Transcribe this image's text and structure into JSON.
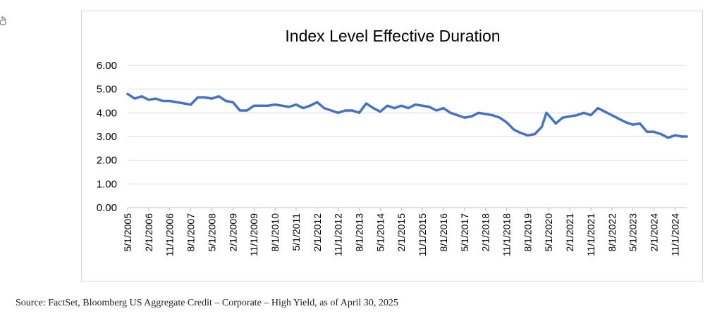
{
  "stray_icon": "hand-pointer-icon",
  "source_note": "Source: FactSet, Bloomberg US Aggregate Credit – Corporate – High Yield, as of April 30, 2025",
  "chart_data": {
    "type": "line",
    "title": "Index Level Effective Duration",
    "xlabel": "",
    "ylabel": "",
    "ylim": [
      0,
      6
    ],
    "yticks": [
      "0.00",
      "1.00",
      "2.00",
      "3.00",
      "4.00",
      "5.00",
      "6.00"
    ],
    "grid": true,
    "legend": "none",
    "line_color": "#4472c4",
    "x_tick_labels": [
      "5/1/2005",
      "2/1/2006",
      "11/1/2006",
      "8/1/2007",
      "5/1/2008",
      "2/1/2009",
      "11/1/2009",
      "8/1/2010",
      "5/1/2011",
      "2/1/2012",
      "11/1/2012",
      "8/1/2013",
      "5/1/2014",
      "2/1/2015",
      "11/1/2015",
      "8/1/2016",
      "5/1/2017",
      "2/1/2018",
      "11/1/2018",
      "8/1/2019",
      "5/1/2020",
      "2/1/2021",
      "11/1/2021",
      "8/1/2022",
      "5/1/2023",
      "2/1/2024",
      "11/1/2024"
    ],
    "series": [
      {
        "x": [
          "2005-05",
          "2005-08",
          "2005-11",
          "2006-02",
          "2006-05",
          "2006-08",
          "2006-11",
          "2007-02",
          "2007-05",
          "2007-08",
          "2007-11",
          "2008-02",
          "2008-05",
          "2008-08",
          "2008-11",
          "2009-02",
          "2009-05",
          "2009-08",
          "2009-11",
          "2010-02",
          "2010-05",
          "2010-08",
          "2010-11",
          "2011-02",
          "2011-05",
          "2011-08",
          "2011-11",
          "2012-02",
          "2012-05",
          "2012-08",
          "2012-11",
          "2013-02",
          "2013-05",
          "2013-08",
          "2013-11",
          "2014-02",
          "2014-05",
          "2014-08",
          "2014-11",
          "2015-02",
          "2015-05",
          "2015-08",
          "2015-11",
          "2016-02",
          "2016-05",
          "2016-08",
          "2016-11",
          "2017-02",
          "2017-05",
          "2017-08",
          "2017-11",
          "2018-02",
          "2018-05",
          "2018-08",
          "2018-11",
          "2019-02",
          "2019-05",
          "2019-08",
          "2019-11",
          "2020-02",
          "2020-04",
          "2020-05",
          "2020-08",
          "2020-11",
          "2021-02",
          "2021-05",
          "2021-08",
          "2021-11",
          "2022-02",
          "2022-05",
          "2022-08",
          "2022-11",
          "2023-02",
          "2023-05",
          "2023-08",
          "2023-11",
          "2024-02",
          "2024-05",
          "2024-08",
          "2024-11",
          "2025-02",
          "2025-04"
        ],
        "values": [
          4.8,
          4.6,
          4.7,
          4.55,
          4.6,
          4.5,
          4.5,
          4.45,
          4.4,
          4.35,
          4.65,
          4.65,
          4.6,
          4.7,
          4.5,
          4.45,
          4.1,
          4.1,
          4.3,
          4.3,
          4.3,
          4.35,
          4.3,
          4.25,
          4.35,
          4.2,
          4.3,
          4.45,
          4.2,
          4.1,
          4.0,
          4.1,
          4.1,
          4.0,
          4.4,
          4.2,
          4.05,
          4.3,
          4.2,
          4.3,
          4.2,
          4.35,
          4.3,
          4.25,
          4.1,
          4.2,
          4.0,
          3.9,
          3.8,
          3.85,
          4.0,
          3.95,
          3.9,
          3.8,
          3.6,
          3.3,
          3.15,
          3.05,
          3.1,
          3.4,
          4.0,
          3.9,
          3.55,
          3.8,
          3.85,
          3.9,
          4.0,
          3.9,
          4.2,
          4.05,
          3.9,
          3.75,
          3.6,
          3.5,
          3.55,
          3.2,
          3.2,
          3.1,
          2.95,
          3.05,
          3.0,
          3.0
        ]
      }
    ]
  }
}
